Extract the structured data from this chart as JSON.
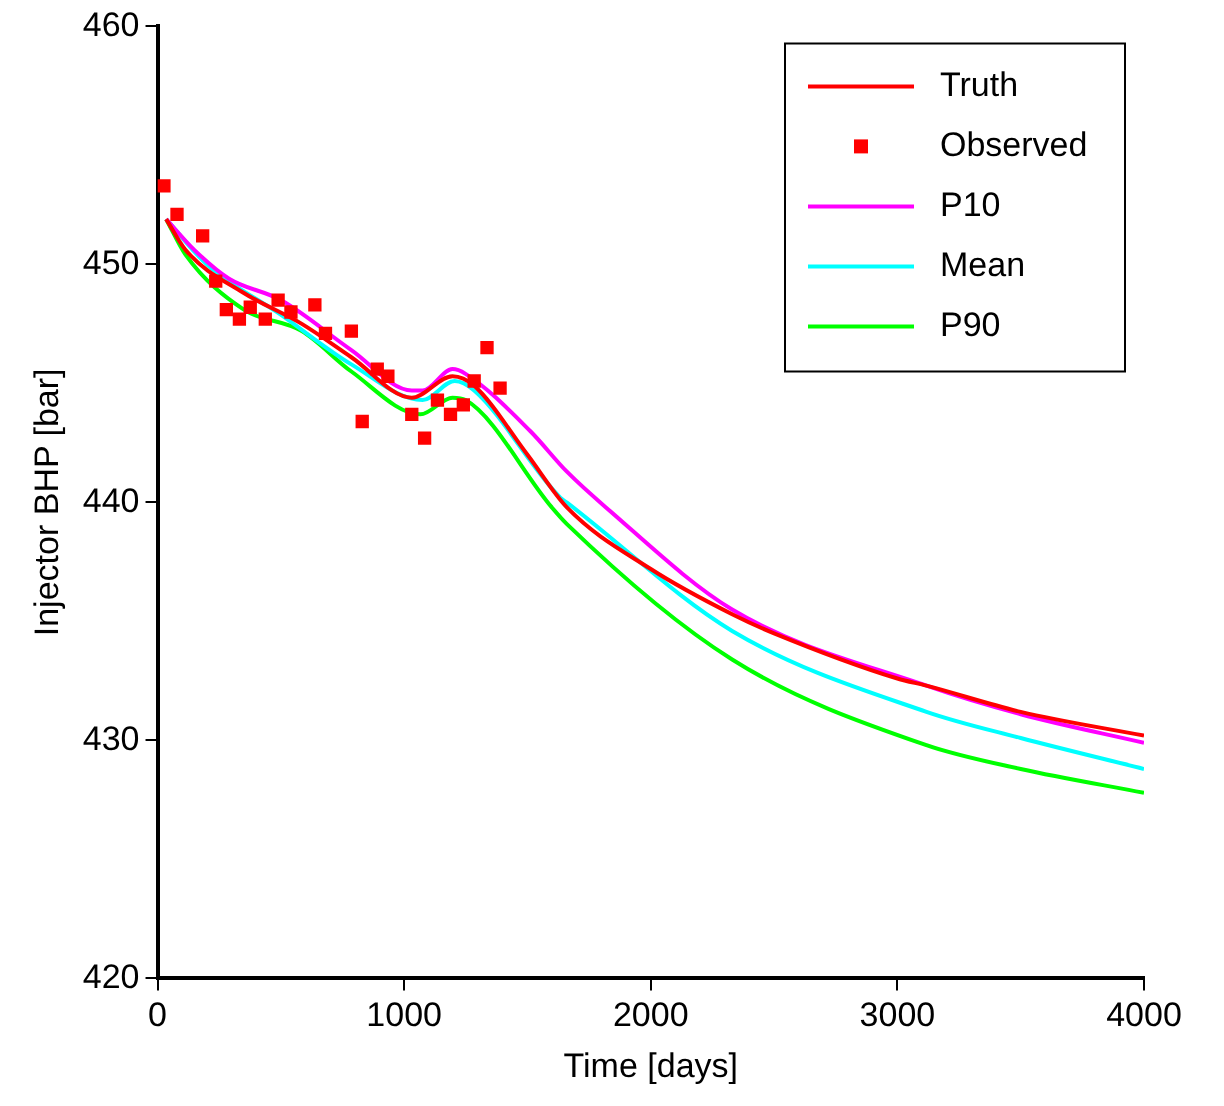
{
  "chart_data": {
    "type": "line",
    "xlabel": "Time [days]",
    "ylabel": "Injector BHP [bar]",
    "xlim": [
      0,
      4000
    ],
    "xticks": [
      0,
      1000,
      2000,
      3000,
      4000
    ],
    "ylim": [
      420,
      460
    ],
    "yticks": [
      420,
      430,
      440,
      450,
      460
    ],
    "grid": false,
    "legend": "top right",
    "marker": "none",
    "line_style": "solid",
    "series": [
      {
        "name": "Truth",
        "color": "#ff0000",
        "x": [
          35,
          114,
          350,
          585,
          786,
          1031,
          1196,
          1284,
          1500,
          1659,
          2000,
          2330,
          2500,
          3000,
          3118,
          3500,
          4000
        ],
        "values": [
          451.9,
          450.6,
          448.8,
          447.5,
          446.1,
          444.4,
          445.3,
          444.9,
          442.0,
          439.8,
          437.2,
          435.3,
          434.5,
          432.6,
          432.3,
          431.2,
          430.2
        ]
      },
      {
        "name": "Observed",
        "type": "scatter",
        "marker": "square",
        "color": "#ff0000",
        "x": [
          26,
          79,
          183,
          236,
          279,
          332,
          376,
          437,
          489,
          541,
          638,
          681,
          786,
          830,
          891,
          934,
          1031,
          1083,
          1135,
          1188,
          1240,
          1284,
          1336,
          1389
        ],
        "values": [
          453.3,
          452.1,
          451.2,
          449.3,
          448.1,
          447.7,
          448.2,
          447.7,
          448.5,
          448.0,
          448.3,
          447.1,
          447.2,
          443.4,
          445.6,
          445.3,
          443.7,
          442.7,
          444.3,
          443.7,
          444.1,
          445.1,
          446.5,
          444.8
        ]
      },
      {
        "name": "P10",
        "color": "#ff00ff",
        "x": [
          35,
          150,
          290,
          500,
          786,
          1031,
          1075,
          1196,
          1249,
          1511,
          1659,
          1817,
          2330,
          3118,
          3500,
          4000
        ],
        "values": [
          451.9,
          450.6,
          449.4,
          448.5,
          446.4,
          444.7,
          444.7,
          445.6,
          445.4,
          443.0,
          441.3,
          439.8,
          435.5,
          432.3,
          431.1,
          429.9
        ]
      },
      {
        "name": "Mean",
        "color": "#00ffff",
        "x": [
          35,
          200,
          498,
          786,
          1075,
          1205,
          1284,
          1633,
          1659,
          2330,
          3118,
          3500,
          4000
        ],
        "values": [
          451.9,
          450.0,
          447.9,
          445.8,
          444.3,
          445.1,
          444.7,
          440.2,
          440.0,
          434.6,
          431.2,
          430.1,
          428.8
        ]
      },
      {
        "name": "P90",
        "color": "#00ff00",
        "x": [
          35,
          114,
          350,
          585,
          786,
          1066,
          1196,
          1249,
          1598,
          1659,
          2330,
          3118,
          3500,
          4000
        ],
        "values": [
          451.9,
          450.4,
          448.1,
          447.2,
          445.5,
          443.7,
          444.4,
          444.3,
          439.8,
          439.1,
          433.4,
          429.8,
          428.8,
          427.8
        ]
      }
    ]
  }
}
